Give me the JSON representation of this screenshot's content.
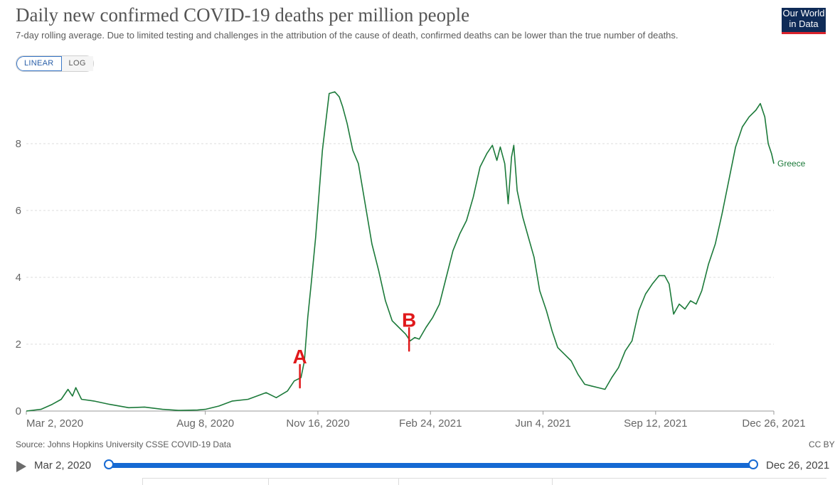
{
  "header": {
    "title": "Daily new confirmed COVID-19 deaths per million people",
    "subtitle": "7-day rolling average. Due to limited testing and challenges in the attribution of the cause of death, confirmed deaths can be lower than the true number of deaths.",
    "logo_line1": "Our World",
    "logo_line2": "in Data"
  },
  "controls": {
    "linear_label": "LINEAR",
    "log_label": "LOG",
    "active_scale": "linear"
  },
  "footer": {
    "source": "Source: Johns Hopkins University CSSE COVID-19 Data",
    "license": "CC BY"
  },
  "timeline": {
    "start_label": "Mar 2, 2020",
    "end_label": "Dec 26, 2021",
    "start_fraction": 0,
    "end_fraction": 1
  },
  "annotations": [
    {
      "text": "A",
      "date": "2020-10-31",
      "color": "#e0191b"
    },
    {
      "text": "B",
      "date": "2021-02-05",
      "color": "#e0191b"
    }
  ],
  "colors": {
    "series": "#1c7a3a",
    "annotation": "#e0191b",
    "timeline": "#1569d3",
    "logo_bg": "#0f2b57",
    "logo_accent": "#d9232c"
  },
  "chart_data": {
    "type": "line",
    "xlabel": "",
    "ylabel": "",
    "xlim": [
      "2020-03-02",
      "2021-12-26"
    ],
    "ylim": [
      0,
      9.6
    ],
    "y_ticks": [
      0,
      2,
      4,
      6,
      8
    ],
    "x_ticks": [
      "Mar 2, 2020",
      "Aug 8, 2020",
      "Nov 16, 2020",
      "Feb 24, 2021",
      "Jun 4, 2021",
      "Sep 12, 2021",
      "Dec 26, 2021"
    ],
    "x_tick_dates": [
      "2020-03-02",
      "2020-08-08",
      "2020-11-16",
      "2021-02-24",
      "2021-06-04",
      "2021-09-12",
      "2021-12-26"
    ],
    "grid": "horizontal dashed",
    "legend": "end-of-line label",
    "series": [
      {
        "name": "Greece",
        "points": [
          [
            "2020-03-02",
            0
          ],
          [
            "2020-03-15",
            0.05
          ],
          [
            "2020-03-25",
            0.2
          ],
          [
            "2020-04-02",
            0.35
          ],
          [
            "2020-04-08",
            0.65
          ],
          [
            "2020-04-12",
            0.45
          ],
          [
            "2020-04-15",
            0.7
          ],
          [
            "2020-04-20",
            0.35
          ],
          [
            "2020-05-01",
            0.3
          ],
          [
            "2020-05-15",
            0.2
          ],
          [
            "2020-06-01",
            0.1
          ],
          [
            "2020-06-15",
            0.12
          ],
          [
            "2020-07-01",
            0.05
          ],
          [
            "2020-07-15",
            0.02
          ],
          [
            "2020-08-01",
            0.03
          ],
          [
            "2020-08-08",
            0.05
          ],
          [
            "2020-08-20",
            0.15
          ],
          [
            "2020-09-01",
            0.3
          ],
          [
            "2020-09-15",
            0.35
          ],
          [
            "2020-10-01",
            0.55
          ],
          [
            "2020-10-10",
            0.4
          ],
          [
            "2020-10-20",
            0.6
          ],
          [
            "2020-10-26",
            0.9
          ],
          [
            "2020-11-01",
            1.0
          ],
          [
            "2020-11-04",
            1.5
          ],
          [
            "2020-11-07",
            2.8
          ],
          [
            "2020-11-10",
            3.8
          ],
          [
            "2020-11-14",
            5.2
          ],
          [
            "2020-11-20",
            7.8
          ],
          [
            "2020-11-26",
            9.5
          ],
          [
            "2020-12-01",
            9.55
          ],
          [
            "2020-12-05",
            9.4
          ],
          [
            "2020-12-08",
            9.1
          ],
          [
            "2020-12-12",
            8.6
          ],
          [
            "2020-12-17",
            7.8
          ],
          [
            "2020-12-22",
            7.4
          ],
          [
            "2020-12-28",
            6.2
          ],
          [
            "2021-01-03",
            5.0
          ],
          [
            "2021-01-09",
            4.2
          ],
          [
            "2021-01-15",
            3.3
          ],
          [
            "2021-01-21",
            2.7
          ],
          [
            "2021-01-27",
            2.5
          ],
          [
            "2021-02-02",
            2.3
          ],
          [
            "2021-02-06",
            2.1
          ],
          [
            "2021-02-10",
            2.2
          ],
          [
            "2021-02-14",
            2.15
          ],
          [
            "2021-02-20",
            2.5
          ],
          [
            "2021-02-26",
            2.8
          ],
          [
            "2021-03-04",
            3.2
          ],
          [
            "2021-03-10",
            4.0
          ],
          [
            "2021-03-16",
            4.8
          ],
          [
            "2021-03-22",
            5.3
          ],
          [
            "2021-03-28",
            5.7
          ],
          [
            "2021-04-03",
            6.4
          ],
          [
            "2021-04-09",
            7.3
          ],
          [
            "2021-04-15",
            7.7
          ],
          [
            "2021-04-20",
            7.95
          ],
          [
            "2021-04-24",
            7.5
          ],
          [
            "2021-04-27",
            7.9
          ],
          [
            "2021-05-01",
            7.4
          ],
          [
            "2021-05-04",
            6.2
          ],
          [
            "2021-05-07",
            7.6
          ],
          [
            "2021-05-09",
            7.95
          ],
          [
            "2021-05-12",
            6.6
          ],
          [
            "2021-05-17",
            5.8
          ],
          [
            "2021-05-22",
            5.2
          ],
          [
            "2021-05-27",
            4.6
          ],
          [
            "2021-06-01",
            3.6
          ],
          [
            "2021-06-07",
            3.0
          ],
          [
            "2021-06-12",
            2.4
          ],
          [
            "2021-06-17",
            1.9
          ],
          [
            "2021-06-23",
            1.7
          ],
          [
            "2021-06-29",
            1.5
          ],
          [
            "2021-07-05",
            1.1
          ],
          [
            "2021-07-11",
            0.8
          ],
          [
            "2021-07-17",
            0.75
          ],
          [
            "2021-07-23",
            0.7
          ],
          [
            "2021-07-29",
            0.65
          ],
          [
            "2021-08-04",
            1.0
          ],
          [
            "2021-08-10",
            1.3
          ],
          [
            "2021-08-16",
            1.8
          ],
          [
            "2021-08-22",
            2.1
          ],
          [
            "2021-08-28",
            3.0
          ],
          [
            "2021-09-03",
            3.5
          ],
          [
            "2021-09-09",
            3.8
          ],
          [
            "2021-09-15",
            4.05
          ],
          [
            "2021-09-20",
            4.05
          ],
          [
            "2021-09-24",
            3.8
          ],
          [
            "2021-09-28",
            2.9
          ],
          [
            "2021-10-03",
            3.2
          ],
          [
            "2021-10-08",
            3.05
          ],
          [
            "2021-10-13",
            3.3
          ],
          [
            "2021-10-18",
            3.2
          ],
          [
            "2021-10-23",
            3.6
          ],
          [
            "2021-10-29",
            4.4
          ],
          [
            "2021-11-04",
            5.0
          ],
          [
            "2021-11-10",
            5.9
          ],
          [
            "2021-11-16",
            6.9
          ],
          [
            "2021-11-22",
            7.9
          ],
          [
            "2021-11-28",
            8.5
          ],
          [
            "2021-12-04",
            8.8
          ],
          [
            "2021-12-10",
            9.0
          ],
          [
            "2021-12-14",
            9.2
          ],
          [
            "2021-12-18",
            8.8
          ],
          [
            "2021-12-21",
            8.0
          ],
          [
            "2021-12-24",
            7.7
          ],
          [
            "2021-12-26",
            7.4
          ]
        ]
      }
    ]
  }
}
